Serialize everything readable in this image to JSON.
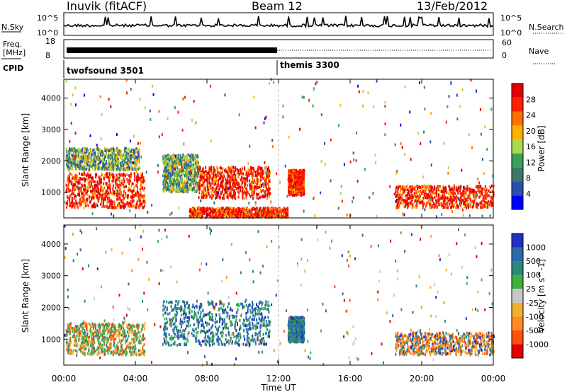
{
  "header": {
    "station": "Inuvik (fitACF)",
    "beam": "Beam 12",
    "date": "13/Feb/2012"
  },
  "nsky": {
    "label": "N.Sky",
    "tick_top": "10^5",
    "tick_bottom": "10^0",
    "right_label": "N.Search",
    "right_tick_top": "10^5",
    "right_tick_bottom": "10^0"
  },
  "freq": {
    "label_line1": "Freq.",
    "label_line2": "[MHz]",
    "ticks": [
      "18",
      "8"
    ],
    "right_label": "Nave",
    "right_ticks": [
      "60",
      "0"
    ]
  },
  "cpid": {
    "label": "CPID",
    "programs": [
      {
        "name": "twofsound 3501",
        "start_hour": 0
      },
      {
        "name": "themis 3300",
        "start_hour": 12
      }
    ]
  },
  "colors": {
    "power": [
      "#0000ff",
      "#2a4fb0",
      "#3a7a6a",
      "#3aa05a",
      "#aad850",
      "#ffb000",
      "#ff7000",
      "#ff2000",
      "#e00000"
    ],
    "velocity": [
      "#2030c0",
      "#2a6aaa",
      "#2a8a7a",
      "#40b040",
      "#c8c8c8",
      "#f0b030",
      "#ff8c20",
      "#ff5010",
      "#e00000"
    ]
  },
  "chart_data": [
    {
      "type": "heatmap",
      "title": "",
      "xlabel": "",
      "ylabel": "Slant Range [km]",
      "xlim": [
        "00:00",
        "00:00"
      ],
      "ylim": [
        180,
        4600
      ],
      "x_ticks": [
        "00:00",
        "04:00",
        "08:00",
        "12:00",
        "16:00",
        "20:00",
        "00:00"
      ],
      "y_ticks": [
        "1000",
        "2000",
        "3000",
        "4000"
      ],
      "colorbar": {
        "label": "Power [dB]",
        "ticks": [
          "4",
          "8",
          "12",
          "16",
          "20",
          "24",
          "28"
        ]
      },
      "regions": [
        {
          "t_start": 0.1,
          "t_end": 4.5,
          "r_min": 500,
          "r_max": 1600,
          "level": "high"
        },
        {
          "t_start": 0.1,
          "t_end": 4.2,
          "r_min": 1700,
          "r_max": 2400,
          "level": "medium"
        },
        {
          "t_start": 5.5,
          "t_end": 7.5,
          "r_min": 1000,
          "r_max": 2200,
          "level": "medium"
        },
        {
          "t_start": 7.5,
          "t_end": 11.5,
          "r_min": 800,
          "r_max": 1800,
          "level": "high"
        },
        {
          "t_start": 7.0,
          "t_end": 12.5,
          "r_min": 200,
          "r_max": 500,
          "level": "high"
        },
        {
          "t_start": 12.5,
          "t_end": 13.4,
          "r_min": 900,
          "r_max": 1700,
          "level": "high"
        },
        {
          "t_start": 18.5,
          "t_end": 24.0,
          "r_min": 500,
          "r_max": 1200,
          "level": "high"
        }
      ]
    },
    {
      "type": "heatmap",
      "title": "",
      "xlabel": "Time UT",
      "ylabel": "Slant Range [km]",
      "xlim": [
        "00:00",
        "00:00"
      ],
      "ylim": [
        180,
        4600
      ],
      "x_ticks": [
        "00:00",
        "04:00",
        "08:00",
        "12:00",
        "16:00",
        "20:00",
        "00:00"
      ],
      "y_ticks": [
        "1000",
        "2000",
        "3000",
        "4000"
      ],
      "colorbar": {
        "label": "Velocity [m s^-1]",
        "ticks": [
          "1000",
          "500",
          "100",
          "25",
          "-25",
          "-100",
          "-500",
          "-1000"
        ]
      },
      "regions": [
        {
          "t_start": 0.1,
          "t_end": 4.5,
          "r_min": 500,
          "r_max": 1500,
          "level": "mixed green/orange"
        },
        {
          "t_start": 5.5,
          "t_end": 11.5,
          "r_min": 800,
          "r_max": 2200,
          "level": "green/blue"
        },
        {
          "t_start": 12.5,
          "t_end": 13.4,
          "r_min": 900,
          "r_max": 1700,
          "level": "green"
        },
        {
          "t_start": 18.5,
          "t_end": 24.0,
          "r_min": 500,
          "r_max": 1200,
          "level": "orange/blue"
        }
      ]
    }
  ]
}
